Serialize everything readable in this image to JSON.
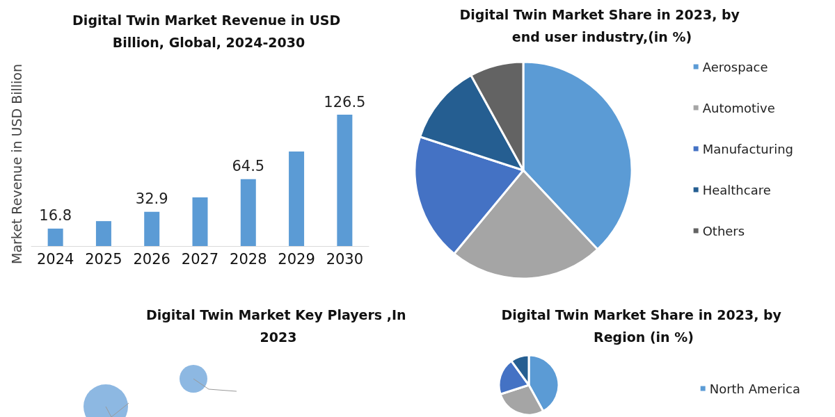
{
  "chart_data": [
    {
      "type": "bar",
      "title": "Digital Twin Market Revenue in USD Billion, Global, 2024-2030",
      "ylabel": "Market Revenue in USD Billion",
      "categories": [
        "2024",
        "2025",
        "2026",
        "2027",
        "2028",
        "2029",
        "2030"
      ],
      "values": [
        16.8,
        24,
        32.9,
        46.8,
        64.5,
        91.1,
        126.5
      ],
      "value_labels": [
        "16.8",
        null,
        "32.9",
        null,
        "64.5",
        null,
        "126.5"
      ],
      "color": "#5b9bd5",
      "legend": false,
      "grid": false
    },
    {
      "type": "pie",
      "title": "Digital Twin Market Share in 2023, by end user industry,(in %)",
      "categories": [
        "Aerospace",
        "Automotive",
        "Manufacturing",
        "Healthcare",
        "Others"
      ],
      "values": [
        38,
        23,
        19,
        12,
        8
      ],
      "colors": [
        "#5b9bd5",
        "#a5a5a5",
        "#4472c4",
        "#255e91",
        "#636363"
      ],
      "legend": "right"
    },
    {
      "type": "other",
      "title": "Digital Twin Market Key Players ,In 2023"
    },
    {
      "type": "pie",
      "title": "Digital Twin Market Share in 2023, by Region (in %)",
      "categories": [
        "North America",
        null,
        null,
        null
      ],
      "values": [
        42,
        28,
        20,
        10
      ],
      "colors": [
        "#5b9bd5",
        "#a5a5a5",
        "#4472c4",
        "#255e91"
      ],
      "legend": "right"
    }
  ]
}
